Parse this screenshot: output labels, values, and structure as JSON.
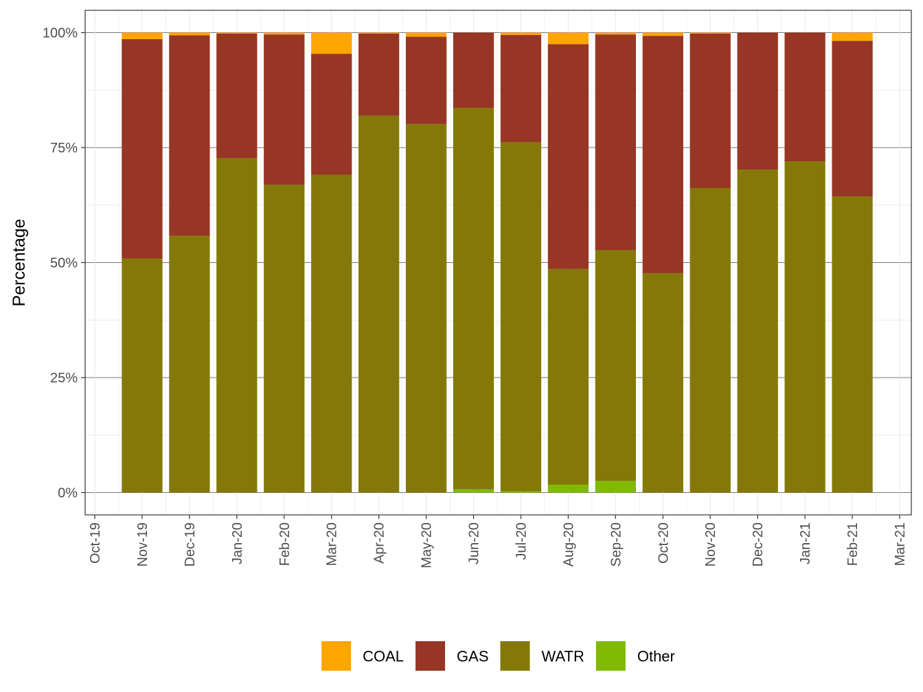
{
  "chart_data": {
    "type": "bar",
    "stacked": true,
    "normalized": true,
    "xlabel": "",
    "ylabel": "Percentage",
    "ylim": [
      0,
      1
    ],
    "y_ticks": [
      0,
      0.25,
      0.5,
      0.75,
      1.0
    ],
    "y_tick_labels": [
      "0%",
      "25%",
      "50%",
      "75%",
      "100%"
    ],
    "x_axis_ticks": [
      "Oct-19",
      "Nov-19",
      "Dec-19",
      "Jan-20",
      "Feb-20",
      "Mar-20",
      "Apr-20",
      "May-20",
      "Jun-20",
      "Jul-20",
      "Aug-20",
      "Sep-20",
      "Oct-20",
      "Nov-20",
      "Dec-20",
      "Jan-21",
      "Feb-21",
      "Mar-21"
    ],
    "x_range": [
      "2019-10-01",
      "2021-03-01"
    ],
    "categories": [
      "2019-11-01",
      "2019-12-01",
      "2020-01-01",
      "2020-02-01",
      "2020-03-01",
      "2020-04-01",
      "2020-05-01",
      "2020-06-01",
      "2020-07-01",
      "2020-08-01",
      "2020-09-01",
      "2020-10-01",
      "2020-11-01",
      "2020-12-01",
      "2021-01-01",
      "2021-02-01"
    ],
    "series": [
      {
        "name": "Other",
        "color": "#7fba00",
        "values": [
          0,
          0,
          0,
          0,
          0,
          0,
          0,
          0.007,
          0.003,
          0.017,
          0.025,
          0,
          0,
          0,
          0,
          0
        ]
      },
      {
        "name": "WATR",
        "color": "#847908",
        "values": [
          0.509,
          0.558,
          0.727,
          0.669,
          0.691,
          0.819,
          0.801,
          0.829,
          0.759,
          0.469,
          0.502,
          0.477,
          0.662,
          0.702,
          0.72,
          0.644
        ]
      },
      {
        "name": "GAS",
        "color": "#973624",
        "values": [
          0.477,
          0.436,
          0.271,
          0.327,
          0.263,
          0.179,
          0.19,
          0.164,
          0.233,
          0.489,
          0.469,
          0.516,
          0.336,
          0.298,
          0.28,
          0.338
        ]
      },
      {
        "name": "COAL",
        "color": "#ffa500",
        "values": [
          0.014,
          0.006,
          0.002,
          0.004,
          0.046,
          0.002,
          0.009,
          0,
          0.005,
          0.025,
          0.004,
          0.007,
          0.002,
          0,
          0,
          0.018
        ]
      }
    ],
    "legend": {
      "position": "bottom",
      "items": [
        {
          "label": "COAL",
          "color": "#ffa500"
        },
        {
          "label": "GAS",
          "color": "#973624"
        },
        {
          "label": "WATR",
          "color": "#847908"
        },
        {
          "label": "Other",
          "color": "#7fba00"
        }
      ]
    },
    "grid": true,
    "theme": "bw"
  }
}
